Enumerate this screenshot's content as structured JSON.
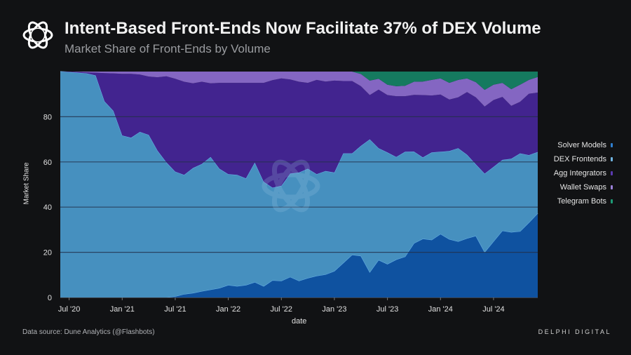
{
  "header": {
    "title": "Intent-Based Front-Ends Now Facilitate 37% of DEX Volume",
    "subtitle": "Market Share of Front-Ends by Volume"
  },
  "footer": {
    "source": "Data source: Dune Analytics (@Flashbots)",
    "brand": "DELPHI DIGITAL"
  },
  "colors": {
    "background": "#111214",
    "solver_models": "#0f52a0",
    "dex_frontends": "#4690bf",
    "agg_integrators": "#42248f",
    "wallet_swaps": "#8466c2",
    "telegram_bots": "#157a5f"
  },
  "chart_data": {
    "type": "area",
    "stacked": true,
    "title": "Intent-Based Front-Ends Now Facilitate 37% of DEX Volume",
    "subtitle": "Market Share of Front-Ends by Volume",
    "xlabel": "date",
    "ylabel": "Market Share",
    "ylim": [
      0,
      100
    ],
    "yticks": [
      "0",
      "20",
      "40",
      "60",
      "80"
    ],
    "ytick_values": [
      0,
      20,
      40,
      60,
      80
    ],
    "xticks": [
      "Jul '20",
      "Jan '21",
      "Jul '21",
      "Jan '22",
      "Jul '22",
      "Jan '23",
      "Jul '23",
      "Jan '24",
      "Jul '24"
    ],
    "xtick_values": [
      "2020-07",
      "2021-01",
      "2021-07",
      "2022-01",
      "2022-07",
      "2023-01",
      "2023-07",
      "2024-01",
      "2024-07"
    ],
    "grid": true,
    "legend_position": "right",
    "x": [
      "2020-06",
      "2020-07",
      "2020-08",
      "2020-09",
      "2020-10",
      "2020-11",
      "2020-12",
      "2021-01",
      "2021-02",
      "2021-03",
      "2021-04",
      "2021-05",
      "2021-06",
      "2021-07",
      "2021-08",
      "2021-09",
      "2021-10",
      "2021-11",
      "2021-12",
      "2022-01",
      "2022-02",
      "2022-03",
      "2022-04",
      "2022-05",
      "2022-06",
      "2022-07",
      "2022-08",
      "2022-09",
      "2022-10",
      "2022-11",
      "2022-12",
      "2023-01",
      "2023-02",
      "2023-03",
      "2023-04",
      "2023-05",
      "2023-06",
      "2023-07",
      "2023-08",
      "2023-09",
      "2023-10",
      "2023-11",
      "2023-12",
      "2024-01",
      "2024-02",
      "2024-03",
      "2024-04",
      "2024-05",
      "2024-06",
      "2024-07",
      "2024-08",
      "2024-09",
      "2024-10",
      "2024-11",
      "2024-12"
    ],
    "series": [
      {
        "name": "Solver Models",
        "color": "#0f52a0",
        "values": [
          0,
          0,
          0,
          0,
          0,
          0,
          0,
          0,
          0,
          0,
          0,
          0,
          0,
          0.5,
          1.5,
          2,
          2.8,
          3.5,
          4.2,
          5.5,
          5,
          5.5,
          6.8,
          5,
          7.6,
          7.4,
          9.1,
          7.4,
          8.6,
          9.6,
          10.2,
          11.7,
          15.3,
          18.9,
          18.4,
          11.2,
          16.6,
          14.8,
          16.8,
          18.1,
          24,
          26,
          25.5,
          28.1,
          25.8,
          24.8,
          26.2,
          27.3,
          20.1,
          24.8,
          29.6,
          28.9,
          29.3,
          33.2,
          37.3
        ]
      },
      {
        "name": "DEX Frontends",
        "color": "#4690bf",
        "values": [
          100,
          99.8,
          99.5,
          99.2,
          98.3,
          86.8,
          82.6,
          71.7,
          70.7,
          73.3,
          72,
          65,
          59.8,
          55.2,
          52.8,
          55.3,
          56.3,
          58.7,
          52.8,
          49.1,
          49.3,
          47.2,
          52.9,
          46.2,
          41,
          42,
          45.7,
          47.9,
          48.4,
          45,
          45.8,
          43.6,
          48.5,
          44.9,
          48.7,
          58.8,
          49.5,
          49.4,
          45.4,
          46.4,
          40.6,
          36,
          38.7,
          36.4,
          39,
          41.3,
          37,
          31.6,
          34.7,
          33,
          31.3,
          32.5,
          34.5,
          29.8,
          27.1
        ]
      },
      {
        "name": "Agg Integrators",
        "color": "#42248f",
        "values": [
          0,
          0.2,
          0.3,
          0.4,
          1.2,
          12.5,
          16.6,
          27.3,
          28.3,
          25.4,
          25.8,
          32.5,
          38.1,
          41.1,
          41.2,
          37.5,
          36.4,
          32.6,
          38,
          40.4,
          40.7,
          42.3,
          35.3,
          43.8,
          47.6,
          47.6,
          41.7,
          40.2,
          38,
          41.7,
          39.6,
          40.7,
          32,
          32,
          26.4,
          19.6,
          25.9,
          25.4,
          26.9,
          24.6,
          25.1,
          27.6,
          25.2,
          25.3,
          22.8,
          22.5,
          27.7,
          29.7,
          29.7,
          29.6,
          27.9,
          23.4,
          22.8,
          27.2,
          26.3
        ]
      },
      {
        "name": "Wallet Swaps",
        "color": "#8466c2",
        "values": [
          0,
          0,
          0.2,
          0.4,
          0.5,
          0.7,
          0.8,
          1,
          1,
          1.3,
          2.2,
          2.5,
          2.1,
          3.2,
          4.5,
          5.2,
          4.5,
          5.2,
          5,
          5,
          5,
          5,
          5,
          5,
          3.8,
          3,
          3.5,
          4.5,
          5,
          3.7,
          4.4,
          4,
          4.2,
          4.2,
          5.4,
          6.4,
          4.8,
          4.6,
          4.4,
          4.6,
          5.8,
          6,
          6.9,
          7.2,
          7.4,
          7.7,
          6.1,
          6.7,
          7.4,
          6.8,
          6.2,
          7.4,
          7.6,
          6.1,
          6.9
        ]
      },
      {
        "name": "Telegram Bots",
        "color": "#157a5f",
        "values": [
          0,
          0,
          0,
          0,
          0,
          0,
          0,
          0,
          0,
          0,
          0,
          0,
          0,
          0,
          0,
          0,
          0,
          0,
          0,
          0,
          0,
          0,
          0,
          0,
          0,
          0,
          0,
          0,
          0,
          0,
          0,
          0,
          0,
          0,
          1.1,
          4,
          3.2,
          5.8,
          6.5,
          6.3,
          4.5,
          4.4,
          3.7,
          3,
          5,
          3.7,
          3,
          4.7,
          8.1,
          5.8,
          5,
          7.8,
          5.8,
          3.7,
          2.4
        ]
      }
    ]
  }
}
